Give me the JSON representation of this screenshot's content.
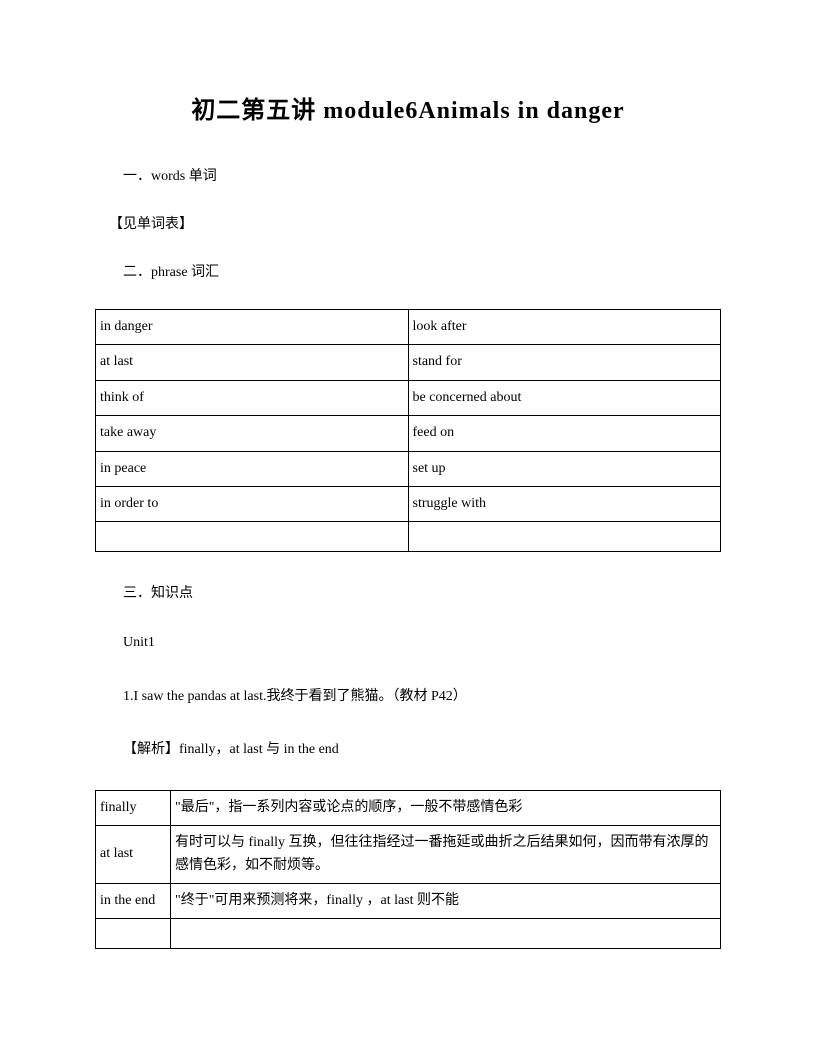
{
  "title": "初二第五讲 module6Animals in danger",
  "section1": "一．words 单词",
  "note1": "【见单词表】",
  "section2": "二．phrase 词汇",
  "phraseTable": {
    "rows": [
      [
        "in danger",
        "look after"
      ],
      [
        "at last",
        "stand for"
      ],
      [
        "think of",
        "be concerned about"
      ],
      [
        "take away",
        "feed on"
      ],
      [
        "in peace",
        "set up"
      ],
      [
        "in order to",
        "struggle with"
      ],
      [
        "",
        ""
      ]
    ]
  },
  "section3": "三．知识点",
  "unit": "Unit1",
  "point1": "1.I saw the pandas at last.我终于看到了熊猫。（教材 P42）",
  "analysis": "【解析】finally，at last 与 in the end",
  "knowledgeTable": {
    "rows": [
      [
        "finally",
        "\"最后\"，指一系列内容或论点的顺序，一般不带感情色彩"
      ],
      [
        "at last",
        "有时可以与 finally 互换，但往往指经过一番拖延或曲折之后结果如何，因而带有浓厚的感情色彩，如不耐烦等。"
      ],
      [
        "in the end",
        "\"终于\"可用来预测将来，finally ，at last 则不能"
      ],
      [
        "",
        ""
      ]
    ]
  }
}
